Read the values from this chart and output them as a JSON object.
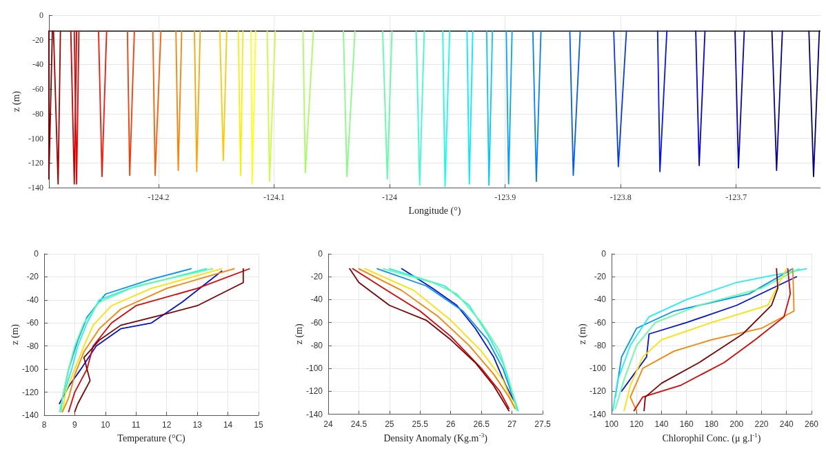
{
  "chart_data": [
    {
      "type": "line",
      "xlabel": "Longitude (°)",
      "ylabel": "z (m)",
      "xlim": [
        -124.295,
        -123.627
      ],
      "xticks": [
        -124.2,
        -124.1,
        -124,
        -123.9,
        -123.8,
        -123.7
      ],
      "ylim": [
        -140,
        0
      ],
      "yticks": [
        -140,
        -120,
        -100,
        -80,
        -60,
        -40,
        -20,
        0
      ],
      "grid": true,
      "series": [
        {
          "color": "#333333",
          "x": [
            -124.295,
            -123.627
          ],
          "values": [
            -13,
            -13
          ]
        },
        {
          "color": "#800000",
          "x": [
            -124.295,
            -124.295,
            -124.292
          ],
          "values": [
            -13,
            -133,
            -13
          ]
        },
        {
          "color": "#a40000",
          "x": [
            -124.291,
            -124.287,
            -124.285
          ],
          "values": [
            -13,
            -137,
            -13
          ]
        },
        {
          "color": "#c80000",
          "x": [
            -124.276,
            -124.273,
            -124.271
          ],
          "values": [
            -13,
            -137,
            -13
          ]
        },
        {
          "color": "#ed0000",
          "x": [
            -124.273,
            -124.271,
            -124.269
          ],
          "values": [
            -13,
            -137,
            -13
          ]
        },
        {
          "color": "#ff1200",
          "x": [
            -124.252,
            -124.249,
            -124.245
          ],
          "values": [
            -13,
            -131,
            -13
          ]
        },
        {
          "color": "#ff3700",
          "x": [
            -124.227,
            -124.225,
            -124.221
          ],
          "values": [
            -13,
            -130,
            -13
          ]
        },
        {
          "color": "#ff5b00",
          "x": [
            -124.205,
            -124.203,
            -124.198
          ],
          "values": [
            -13,
            -130,
            -13
          ]
        },
        {
          "color": "#ff8000",
          "x": [
            -124.185,
            -124.183,
            -124.18
          ],
          "values": [
            -13,
            -126,
            -13
          ]
        },
        {
          "color": "#ffa400",
          "x": [
            -124.169,
            -124.167,
            -124.164
          ],
          "values": [
            -13,
            -127,
            -13
          ]
        },
        {
          "color": "#ffc800",
          "x": [
            -124.147,
            -124.144,
            -124.141
          ],
          "values": [
            -13,
            -118,
            -13
          ]
        },
        {
          "color": "#ffed00",
          "x": [
            -124.131,
            -124.129,
            -124.127
          ],
          "values": [
            -13,
            -130,
            -13
          ]
        },
        {
          "color": "#ffff12",
          "x": [
            -124.12,
            -124.119,
            -124.116
          ],
          "values": [
            -13,
            -137,
            -13
          ]
        },
        {
          "color": "#c8ff37",
          "x": [
            -124.106,
            -124.104,
            -124.099
          ],
          "values": [
            -13,
            -135,
            -13
          ]
        },
        {
          "color": "#a4ff5b",
          "x": [
            -124.075,
            -124.073,
            -124.066
          ],
          "values": [
            -13,
            -128,
            -13
          ]
        },
        {
          "color": "#80ff80",
          "x": [
            -124.04,
            -124.037,
            -124.03
          ],
          "values": [
            -13,
            -131,
            -13
          ]
        },
        {
          "color": "#5bffa4",
          "x": [
            -124.006,
            -124.002,
            -123.998
          ],
          "values": [
            -13,
            -133,
            -13
          ]
        },
        {
          "color": "#37ffc8",
          "x": [
            -123.977,
            -123.974,
            -123.97
          ],
          "values": [
            -13,
            -138,
            -13
          ]
        },
        {
          "color": "#12ffed",
          "x": [
            -123.954,
            -123.952,
            -123.948
          ],
          "values": [
            -13,
            -139,
            -13
          ]
        },
        {
          "color": "#00edff",
          "x": [
            -123.933,
            -123.931,
            -123.928
          ],
          "values": [
            -13,
            -137,
            -13
          ]
        },
        {
          "color": "#00c8ff",
          "x": [
            -123.916,
            -123.914,
            -123.911
          ],
          "values": [
            -13,
            -138,
            -13
          ]
        },
        {
          "color": "#00a4ff",
          "x": [
            -123.899,
            -123.897,
            -123.894
          ],
          "values": [
            -13,
            -137,
            -13
          ]
        },
        {
          "color": "#0080ff",
          "x": [
            -123.876,
            -123.873,
            -123.869
          ],
          "values": [
            -13,
            -135,
            -13
          ]
        },
        {
          "color": "#005bff",
          "x": [
            -123.844,
            -123.841,
            -123.835
          ],
          "values": [
            -13,
            -130,
            -13
          ]
        },
        {
          "color": "#0037ff",
          "x": [
            -123.806,
            -123.802,
            -123.795
          ],
          "values": [
            -13,
            -123,
            -13
          ]
        },
        {
          "color": "#0012ff",
          "x": [
            -123.768,
            -123.766,
            -123.76
          ],
          "values": [
            -13,
            -127,
            -13
          ]
        },
        {
          "color": "#0000ed",
          "x": [
            -123.735,
            -123.732,
            -123.727
          ],
          "values": [
            -13,
            -122,
            -13
          ]
        },
        {
          "color": "#0000c8",
          "x": [
            -123.701,
            -123.698,
            -123.693
          ],
          "values": [
            -13,
            -124,
            -13
          ]
        },
        {
          "color": "#0000a4",
          "x": [
            -123.669,
            -123.665,
            -123.66
          ],
          "values": [
            -13,
            -126,
            -13
          ]
        },
        {
          "color": "#000080",
          "x": [
            -123.637,
            -123.633,
            -123.628
          ],
          "values": [
            -13,
            -131,
            -13
          ]
        }
      ]
    },
    {
      "type": "line",
      "xlabel": "Temperature (°C)",
      "ylabel": "z (m)",
      "xlim": [
        8,
        15
      ],
      "xticks": [
        8,
        9,
        10,
        11,
        12,
        13,
        14,
        15
      ],
      "ylim": [
        -140,
        0
      ],
      "yticks": [
        -140,
        -120,
        -100,
        -80,
        -60,
        -40,
        -20,
        0
      ],
      "grid": true,
      "series": [
        {
          "color": "#0010e0",
          "x": [
            13.8,
            12.5,
            11.5,
            10.5,
            9.7,
            9.2,
            8.8,
            8.5
          ],
          "values": [
            -15,
            -42,
            -60,
            -65,
            -80,
            -100,
            -115,
            -130
          ]
        },
        {
          "color": "#0090ff",
          "x": [
            12.8,
            11.5,
            10,
            9.4,
            9.1,
            8.8,
            8.6
          ],
          "values": [
            -13,
            -22,
            -35,
            -55,
            -75,
            -100,
            -125
          ]
        },
        {
          "color": "#20f0f0",
          "x": [
            13.3,
            10.8,
            9.8,
            9.4,
            9.1,
            8.9,
            8.6,
            8.55
          ],
          "values": [
            -13,
            -30,
            -40,
            -60,
            -80,
            -100,
            -125,
            -137
          ]
        },
        {
          "color": "#60ff9f",
          "x": [
            13.5,
            11,
            9.8,
            9.3,
            9,
            8.8,
            8.6,
            8.5
          ],
          "values": [
            -13,
            -28,
            -42,
            -60,
            -80,
            -100,
            -125,
            -137
          ]
        },
        {
          "color": "#ffe000",
          "x": [
            13.8,
            11.5,
            10.2,
            9.6,
            9.3,
            9,
            8.7,
            8.6
          ],
          "values": [
            -13,
            -30,
            -45,
            -62,
            -80,
            -100,
            -120,
            -137
          ]
        },
        {
          "color": "#ff8000",
          "x": [
            14.2,
            12,
            10.5,
            9.8,
            9.3,
            9,
            8.8,
            8.6
          ],
          "values": [
            -13,
            -30,
            -48,
            -65,
            -85,
            -105,
            -125,
            -137
          ]
        },
        {
          "color": "#e00000",
          "x": [
            14.7,
            13,
            11,
            10.2,
            9.6,
            9.4,
            9,
            8.8
          ],
          "values": [
            -13,
            -30,
            -45,
            -60,
            -80,
            -100,
            -120,
            -137
          ]
        },
        {
          "color": "#800000",
          "x": [
            14.5,
            14.5,
            13,
            12,
            10.5,
            9.8,
            9.3,
            9.5,
            9.1,
            9
          ],
          "values": [
            -13,
            -25,
            -45,
            -52,
            -62,
            -75,
            -90,
            -110,
            -130,
            -137
          ]
        }
      ]
    },
    {
      "type": "line",
      "xlabel": "Density Anomaly (Kg.m$^{-3}$)",
      "ylabel": "z (m)",
      "xlim": [
        24,
        27.5
      ],
      "xticks": [
        24,
        24.5,
        25,
        25.5,
        26,
        26.5,
        27,
        27.5
      ],
      "ylim": [
        -140,
        0
      ],
      "yticks": [
        -140,
        -120,
        -100,
        -80,
        -60,
        -40,
        -20,
        0
      ],
      "grid": true,
      "series": [
        {
          "color": "#0010e0",
          "x": [
            25.2,
            25.7,
            26.1,
            26.4,
            26.7,
            26.9,
            27.05
          ],
          "values": [
            -13,
            -30,
            -45,
            -65,
            -90,
            -115,
            -130
          ]
        },
        {
          "color": "#0090ff",
          "x": [
            24.8,
            25.6,
            26.2,
            26.6,
            26.85,
            27.05
          ],
          "values": [
            -13,
            -28,
            -50,
            -75,
            -100,
            -130
          ]
        },
        {
          "color": "#20f0f0",
          "x": [
            25,
            25.9,
            26.3,
            26.6,
            26.85,
            27,
            27.1
          ],
          "values": [
            -13,
            -28,
            -45,
            -70,
            -95,
            -120,
            -137
          ]
        },
        {
          "color": "#60ff9f",
          "x": [
            24.9,
            25.7,
            26.1,
            26.5,
            26.8,
            26.95,
            27.08
          ],
          "values": [
            -13,
            -25,
            -35,
            -60,
            -85,
            -110,
            -137
          ]
        },
        {
          "color": "#ffe000",
          "x": [
            24.6,
            25.4,
            26,
            26.5,
            26.85,
            27.05
          ],
          "values": [
            -13,
            -32,
            -58,
            -85,
            -110,
            -135
          ]
        },
        {
          "color": "#ff8000",
          "x": [
            24.5,
            25.2,
            25.8,
            26.3,
            26.7,
            26.95,
            27.05
          ],
          "values": [
            -13,
            -32,
            -55,
            -80,
            -105,
            -125,
            -135
          ]
        },
        {
          "color": "#e00000",
          "x": [
            24.4,
            24.9,
            25.5,
            26,
            26.5,
            26.8,
            26.95
          ],
          "values": [
            -13,
            -30,
            -50,
            -72,
            -100,
            -120,
            -135
          ]
        },
        {
          "color": "#800000",
          "x": [
            24.35,
            24.5,
            25,
            25.6,
            26,
            26.4,
            26.7,
            26.95
          ],
          "values": [
            -13,
            -25,
            -45,
            -58,
            -75,
            -95,
            -115,
            -137
          ]
        }
      ]
    },
    {
      "type": "line",
      "xlabel": "Chlorophil Conc. (μ g.l$^{-1}$)",
      "ylabel": "z (m)",
      "xlim": [
        100,
        260
      ],
      "xticks": [
        100,
        120,
        140,
        160,
        180,
        200,
        220,
        240,
        260
      ],
      "ylim": [
        -140,
        0
      ],
      "yticks": [
        -140,
        -120,
        -100,
        -80,
        -60,
        -40,
        -20,
        0
      ],
      "grid": true,
      "series": [
        {
          "color": "#0010e0",
          "x": [
            248,
            200,
            160,
            130,
            128,
            118,
            108
          ],
          "values": [
            -20,
            -45,
            -60,
            -70,
            -90,
            -105,
            -120
          ]
        },
        {
          "color": "#0090ff",
          "x": [
            245,
            210,
            150,
            120,
            108,
            103
          ],
          "values": [
            -13,
            -35,
            -50,
            -65,
            -90,
            -125
          ]
        },
        {
          "color": "#20f0f0",
          "x": [
            256,
            200,
            160,
            130,
            115,
            105,
            101
          ],
          "values": [
            -13,
            -25,
            -40,
            -55,
            -80,
            -110,
            -137
          ]
        },
        {
          "color": "#60ff9f",
          "x": [
            250,
            220,
            170,
            135,
            120,
            110,
            103
          ],
          "values": [
            -13,
            -30,
            -45,
            -60,
            -80,
            -110,
            -135
          ]
        },
        {
          "color": "#ffe000",
          "x": [
            240,
            225,
            180,
            140,
            125,
            115,
            110
          ],
          "values": [
            -13,
            -45,
            -60,
            -75,
            -90,
            -115,
            -137
          ]
        },
        {
          "color": "#ff8000",
          "x": [
            245,
            246,
            220,
            180,
            150,
            125,
            115,
            120
          ],
          "values": [
            -13,
            -50,
            -65,
            -75,
            -85,
            -100,
            -125,
            -137
          ]
        },
        {
          "color": "#e00000",
          "x": [
            241,
            243,
            238,
            215,
            190,
            155,
            125,
            118
          ],
          "values": [
            -13,
            -35,
            -55,
            -75,
            -95,
            -115,
            -125,
            -137
          ]
        },
        {
          "color": "#800000",
          "x": [
            232,
            233,
            228,
            205,
            170,
            140,
            127,
            126
          ],
          "values": [
            -13,
            -30,
            -45,
            -70,
            -95,
            -113,
            -125,
            -137
          ]
        }
      ]
    }
  ]
}
